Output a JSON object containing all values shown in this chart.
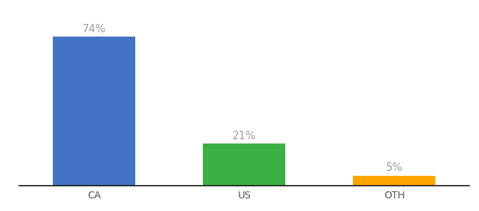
{
  "categories": [
    "CA",
    "US",
    "OTH"
  ],
  "values": [
    74,
    21,
    5
  ],
  "bar_colors": [
    "#4472C4",
    "#3CB043",
    "#FFA500"
  ],
  "labels": [
    "74%",
    "21%",
    "5%"
  ],
  "background_color": "#ffffff",
  "label_color": "#a0a0a0",
  "label_fontsize": 11,
  "tick_fontsize": 10,
  "ylim": [
    0,
    85
  ],
  "bar_width": 0.55,
  "xlim": [
    -0.5,
    2.5
  ]
}
